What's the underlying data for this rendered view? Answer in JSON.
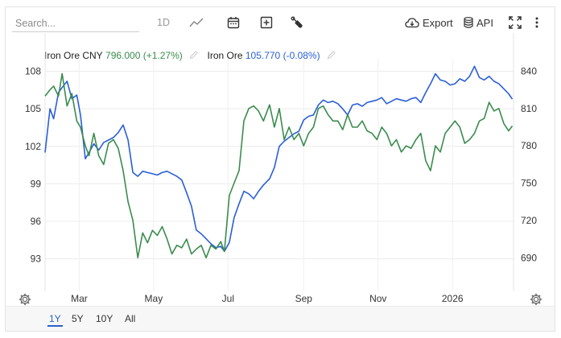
{
  "toolbar": {
    "search_placeholder": "Search...",
    "interval_label": "1D",
    "export_label": "Export",
    "api_label": "API"
  },
  "legend": [
    {
      "name": "Iron Ore CNY",
      "value": "796.000",
      "change": "(+1.27%)",
      "color": "#3a8c4e"
    },
    {
      "name": "Iron Ore",
      "value": "105.770",
      "change": "(-0.08%)",
      "color": "#2a5fd6"
    }
  ],
  "range_buttons": [
    {
      "label": "1Y",
      "active": true
    },
    {
      "label": "5Y",
      "active": false
    },
    {
      "label": "10Y",
      "active": false
    },
    {
      "label": "All",
      "active": false
    }
  ],
  "chart_data": {
    "type": "line",
    "x_axis": {
      "ticks": [
        "Mar",
        "May",
        "Jul",
        "Sep",
        "Nov",
        "2026"
      ],
      "range": [
        "2025-02-01",
        "2026-02-20"
      ]
    },
    "left_axis": {
      "ticks": [
        93,
        96,
        99,
        102,
        105,
        108
      ],
      "range": [
        90.4,
        109.0
      ]
    },
    "right_axis": {
      "ticks": [
        690,
        720,
        750,
        780,
        810,
        840
      ],
      "range": [
        663,
        850
      ]
    },
    "grid": true,
    "series": [
      {
        "name": "Iron Ore",
        "axis": "left",
        "color": "#2a5fd6",
        "x": [
          "2025-02-01",
          "2025-02-05",
          "2025-02-08",
          "2025-02-12",
          "2025-02-15",
          "2025-02-19",
          "2025-02-23",
          "2025-02-27",
          "2025-03-02",
          "2025-03-06",
          "2025-03-09",
          "2025-03-13",
          "2025-03-17",
          "2025-03-21",
          "2025-03-25",
          "2025-03-29",
          "2025-04-02",
          "2025-04-06",
          "2025-04-10",
          "2025-04-14",
          "2025-04-18",
          "2025-04-22",
          "2025-04-26",
          "2025-04-30",
          "2025-05-04",
          "2025-05-08",
          "2025-05-12",
          "2025-05-16",
          "2025-05-20",
          "2025-05-24",
          "2025-05-28",
          "2025-06-01",
          "2025-06-05",
          "2025-06-09",
          "2025-06-13",
          "2025-06-17",
          "2025-06-21",
          "2025-06-25",
          "2025-06-28",
          "2025-07-02",
          "2025-07-06",
          "2025-07-10",
          "2025-07-14",
          "2025-07-18",
          "2025-07-22",
          "2025-07-26",
          "2025-07-30",
          "2025-08-04",
          "2025-08-08",
          "2025-08-12",
          "2025-08-16",
          "2025-08-20",
          "2025-08-24",
          "2025-08-28",
          "2025-09-01",
          "2025-09-05",
          "2025-09-09",
          "2025-09-13",
          "2025-09-17",
          "2025-09-21",
          "2025-09-25",
          "2025-09-29",
          "2025-10-03",
          "2025-10-07",
          "2025-10-11",
          "2025-10-15",
          "2025-10-19",
          "2025-10-23",
          "2025-10-27",
          "2025-10-31",
          "2025-11-04",
          "2025-11-08",
          "2025-11-12",
          "2025-11-16",
          "2025-11-20",
          "2025-11-24",
          "2025-11-28",
          "2025-12-02",
          "2025-12-06",
          "2025-12-10",
          "2025-12-14",
          "2025-12-18",
          "2025-12-22",
          "2025-12-26",
          "2025-12-30",
          "2026-01-03",
          "2026-01-07",
          "2026-01-11",
          "2026-01-15",
          "2026-01-19",
          "2026-01-23",
          "2026-01-27",
          "2026-01-31",
          "2026-02-04",
          "2026-02-08",
          "2026-02-12",
          "2026-02-16",
          "2026-02-19"
        ],
        "y": [
          101.5,
          105.0,
          104.2,
          106.3,
          106.7,
          107.2,
          105.8,
          106.1,
          104.5,
          101.0,
          101.5,
          102.2,
          101.7,
          102.3,
          102.5,
          102.7,
          103.1,
          103.7,
          102.5,
          99.9,
          99.6,
          100.0,
          99.9,
          99.8,
          99.7,
          99.9,
          100.0,
          99.8,
          99.6,
          99.3,
          98.3,
          97.2,
          95.3,
          95.0,
          94.6,
          94.2,
          93.9,
          94.0,
          93.6,
          94.3,
          96.3,
          97.4,
          98.4,
          98.2,
          97.8,
          98.4,
          98.9,
          99.4,
          100.3,
          102.0,
          102.4,
          102.7,
          103.0,
          103.2,
          104.1,
          104.4,
          104.5,
          105.3,
          105.7,
          105.5,
          105.6,
          105.4,
          105.0,
          104.5,
          105.3,
          105.4,
          105.2,
          105.5,
          105.6,
          105.7,
          105.9,
          105.4,
          105.6,
          105.8,
          105.7,
          105.6,
          105.8,
          105.9,
          105.5,
          106.3,
          107.0,
          107.8,
          107.3,
          107.2,
          106.9,
          107.0,
          107.4,
          107.2,
          107.6,
          108.4,
          107.5,
          107.3,
          107.6,
          107.2,
          107.0,
          106.6,
          106.2,
          105.77
        ]
      },
      {
        "name": "Iron Ore CNY",
        "axis": "right",
        "color": "#3a8c4e",
        "x": [
          "2025-02-01",
          "2025-02-05",
          "2025-02-08",
          "2025-02-12",
          "2025-02-15",
          "2025-02-19",
          "2025-02-23",
          "2025-02-27",
          "2025-03-02",
          "2025-03-06",
          "2025-03-09",
          "2025-03-13",
          "2025-03-17",
          "2025-03-21",
          "2025-03-25",
          "2025-03-29",
          "2025-04-02",
          "2025-04-06",
          "2025-04-10",
          "2025-04-14",
          "2025-04-18",
          "2025-04-22",
          "2025-04-26",
          "2025-04-30",
          "2025-05-04",
          "2025-05-08",
          "2025-05-12",
          "2025-05-16",
          "2025-05-20",
          "2025-05-24",
          "2025-05-28",
          "2025-06-01",
          "2025-06-05",
          "2025-06-09",
          "2025-06-13",
          "2025-06-17",
          "2025-06-21",
          "2025-06-25",
          "2025-06-28",
          "2025-07-02",
          "2025-07-06",
          "2025-07-10",
          "2025-07-14",
          "2025-07-18",
          "2025-07-22",
          "2025-07-26",
          "2025-07-30",
          "2025-08-04",
          "2025-08-08",
          "2025-08-12",
          "2025-08-16",
          "2025-08-20",
          "2025-08-24",
          "2025-08-28",
          "2025-09-01",
          "2025-09-05",
          "2025-09-09",
          "2025-09-13",
          "2025-09-17",
          "2025-09-21",
          "2025-09-25",
          "2025-09-29",
          "2025-10-03",
          "2025-10-07",
          "2025-10-11",
          "2025-10-15",
          "2025-10-19",
          "2025-10-23",
          "2025-10-27",
          "2025-10-31",
          "2025-11-04",
          "2025-11-08",
          "2025-11-12",
          "2025-11-16",
          "2025-11-20",
          "2025-11-24",
          "2025-11-28",
          "2025-12-02",
          "2025-12-06",
          "2025-12-10",
          "2025-12-14",
          "2025-12-18",
          "2025-12-22",
          "2025-12-26",
          "2025-12-30",
          "2026-01-03",
          "2026-01-07",
          "2026-01-11",
          "2026-01-15",
          "2026-01-19",
          "2026-01-23",
          "2026-01-27",
          "2026-01-31",
          "2026-02-04",
          "2026-02-08",
          "2026-02-12",
          "2026-02-16",
          "2026-02-19"
        ],
        "y": [
          820,
          825,
          828,
          820,
          838,
          812,
          822,
          800,
          795,
          780,
          772,
          790,
          772,
          765,
          782,
          785,
          778,
          760,
          735,
          720,
          690,
          710,
          702,
          712,
          708,
          715,
          705,
          693,
          700,
          698,
          705,
          693,
          697,
          700,
          690,
          700,
          697,
          703,
          695,
          740,
          750,
          760,
          800,
          810,
          812,
          808,
          800,
          813,
          795,
          810,
          785,
          795,
          785,
          790,
          780,
          790,
          795,
          810,
          812,
          805,
          800,
          800,
          793,
          805,
          795,
          795,
          800,
          792,
          790,
          785,
          795,
          790,
          780,
          785,
          775,
          780,
          778,
          785,
          790,
          768,
          760,
          780,
          775,
          790,
          795,
          800,
          795,
          782,
          785,
          790,
          800,
          802,
          815,
          808,
          810,
          798,
          792,
          796
        ]
      }
    ]
  }
}
